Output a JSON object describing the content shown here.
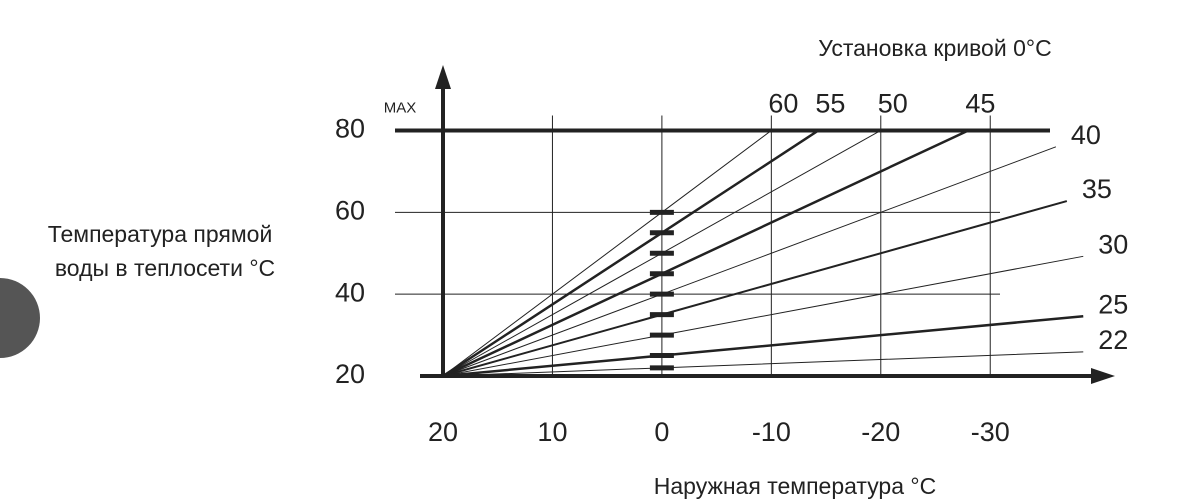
{
  "chart_data": {
    "type": "line",
    "title": "Установка кривой 0°C",
    "y_label": [
      "Температура прямой",
      "воды в теплосети °C"
    ],
    "x_label": "Наружная температура °C",
    "max_label": "MAX",
    "xlim": [
      20,
      -41.4
    ],
    "ylim": [
      20,
      96
    ],
    "xticks": [
      20,
      10,
      0,
      -10,
      -20,
      -30
    ],
    "yticks": [
      20,
      40,
      60,
      80
    ],
    "grid": true,
    "color": "#222222",
    "series": [
      {
        "name": "60",
        "line_width": 1,
        "x": [
          20,
          0,
          -10
        ],
        "values": [
          20,
          60,
          80
        ]
      },
      {
        "name": "55",
        "line_width": 2.5,
        "x": [
          20,
          0,
          -14.3
        ],
        "values": [
          20,
          55,
          80
        ]
      },
      {
        "name": "50",
        "line_width": 1,
        "x": [
          20,
          0,
          -20
        ],
        "values": [
          20,
          50,
          80
        ]
      },
      {
        "name": "45",
        "line_width": 2.5,
        "x": [
          20,
          0,
          -28
        ],
        "values": [
          20,
          45,
          80
        ]
      },
      {
        "name": "40",
        "line_width": 1,
        "x": [
          20,
          0,
          -36
        ],
        "values": [
          20,
          40,
          76
        ]
      },
      {
        "name": "35",
        "line_width": 2,
        "x": [
          20,
          0,
          -37
        ],
        "values": [
          20,
          35,
          62.75
        ]
      },
      {
        "name": "30",
        "line_width": 1,
        "x": [
          20,
          0,
          -38.5
        ],
        "values": [
          20,
          30,
          49.25
        ]
      },
      {
        "name": "25",
        "line_width": 2.5,
        "x": [
          20,
          0,
          -38.5
        ],
        "values": [
          20,
          25,
          34.6
        ]
      },
      {
        "name": "22",
        "line_width": 1,
        "x": [
          20,
          0,
          -38.5
        ],
        "values": [
          20,
          22,
          25.9
        ]
      }
    ]
  }
}
